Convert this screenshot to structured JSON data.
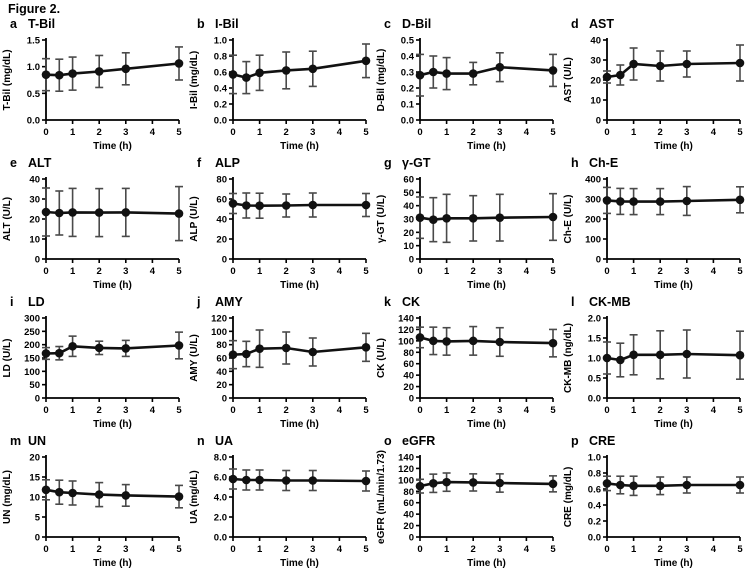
{
  "figure": {
    "title": "Figure 2."
  },
  "chart_data": {
    "type": "line",
    "figure_title": "Figure 2.",
    "xlabel": "Time (h)",
    "x_values": [
      0,
      0.5,
      1,
      2,
      3,
      5
    ],
    "xticks": [
      "0",
      "1",
      "2",
      "3",
      "4",
      "5"
    ],
    "xlim": [
      0,
      5
    ],
    "marker": "filled-circle",
    "error_bars": true,
    "line_color": "#111111",
    "error_bar_color": "#4a4a4a",
    "panels": [
      {
        "letter": "a",
        "title": "T-Bil",
        "ylabel": "T-Bil (mg/dL)",
        "ylim": [
          0,
          1.5
        ],
        "yticks": [
          "0.0",
          "0.5",
          "1.0",
          "1.5"
        ],
        "values": [
          0.85,
          0.84,
          0.87,
          0.91,
          0.96,
          1.06
        ],
        "errors": [
          0.3,
          0.3,
          0.31,
          0.3,
          0.3,
          0.31
        ]
      },
      {
        "letter": "b",
        "title": "I-Bil",
        "ylabel": "I-Bil (mg/dL)",
        "ylim": [
          0,
          1.0
        ],
        "yticks": [
          "0.0",
          "0.2",
          "0.4",
          "0.6",
          "0.8",
          "1.0"
        ],
        "values": [
          0.57,
          0.53,
          0.59,
          0.62,
          0.64,
          0.74
        ],
        "errors": [
          0.24,
          0.2,
          0.22,
          0.23,
          0.22,
          0.21
        ]
      },
      {
        "letter": "c",
        "title": "D-Bil",
        "ylabel": "D-Bil (mg/dL)",
        "ylim": [
          0,
          0.5
        ],
        "yticks": [
          "0.0",
          "0.1",
          "0.2",
          "0.3",
          "0.4",
          "0.5"
        ],
        "values": [
          0.28,
          0.3,
          0.29,
          0.29,
          0.33,
          0.31
        ],
        "errors": [
          0.13,
          0.1,
          0.1,
          0.07,
          0.09,
          0.1
        ]
      },
      {
        "letter": "d",
        "title": "AST",
        "ylabel": "AST (U/L)",
        "ylim": [
          0,
          40
        ],
        "yticks": [
          "0",
          "10",
          "20",
          "30",
          "40"
        ],
        "values": [
          21.5,
          22.5,
          28,
          27,
          28,
          28.5
        ],
        "errors": [
          3,
          5,
          8,
          7.5,
          6.5,
          9
        ]
      },
      {
        "letter": "e",
        "title": "ALT",
        "ylabel": "ALT (U/L)",
        "ylim": [
          0,
          40
        ],
        "yticks": [
          "0",
          "10",
          "20",
          "30",
          "40"
        ],
        "values": [
          23.5,
          23,
          23.3,
          23.2,
          23.3,
          22.7
        ],
        "errors": [
          12,
          11,
          12,
          12,
          12,
          13.5
        ]
      },
      {
        "letter": "f",
        "title": "ALP",
        "ylabel": "ALP (U/L)",
        "ylim": [
          0,
          80
        ],
        "yticks": [
          "0",
          "20",
          "40",
          "60",
          "80"
        ],
        "values": [
          55.5,
          53.5,
          53.3,
          53.5,
          54,
          54
        ],
        "errors": [
          10,
          12.5,
          12.5,
          11.5,
          12,
          11.5
        ]
      },
      {
        "letter": "g",
        "title": "γ-GT",
        "ylabel": "γ-GT (U/L)",
        "ylim": [
          0,
          60
        ],
        "yticks": [
          "0",
          "10",
          "20",
          "30",
          "40",
          "50",
          "60"
        ],
        "values": [
          31,
          29.5,
          30.5,
          30.5,
          31,
          31.5
        ],
        "errors": [
          15.5,
          16.5,
          18,
          17,
          17.5,
          17.5
        ]
      },
      {
        "letter": "h",
        "title": "Ch-E",
        "ylabel": "Ch-E (U/L)",
        "ylim": [
          0,
          400
        ],
        "yticks": [
          "0",
          "100",
          "200",
          "300",
          "400"
        ],
        "values": [
          293,
          288,
          287,
          287,
          290,
          296
        ],
        "errors": [
          65,
          65,
          65,
          65,
          72,
          65
        ]
      },
      {
        "letter": "i",
        "title": "LD",
        "ylabel": "LD (U/L)",
        "ylim": [
          0,
          300
        ],
        "yticks": [
          "0",
          "50",
          "100",
          "150",
          "200",
          "250",
          "300"
        ],
        "values": [
          167,
          168,
          194,
          188,
          186,
          197
        ],
        "errors": [
          22,
          25,
          38,
          25,
          30,
          50
        ]
      },
      {
        "letter": "j",
        "title": "AMY",
        "ylabel": "AMY (U/L)",
        "ylim": [
          0,
          120
        ],
        "yticks": [
          "0",
          "20",
          "40",
          "60",
          "80",
          "100",
          "120"
        ],
        "values": [
          65,
          66,
          74,
          75,
          69,
          76
        ],
        "errors": [
          21,
          19,
          28,
          24,
          21,
          21
        ]
      },
      {
        "letter": "k",
        "title": "CK",
        "ylabel": "CK (U/L)",
        "ylim": [
          0,
          140
        ],
        "yticks": [
          "0",
          "20",
          "40",
          "60",
          "80",
          "100",
          "120",
          "140"
        ],
        "values": [
          106,
          100,
          99,
          100,
          98,
          96
        ],
        "errors": [
          18,
          24,
          24,
          25,
          25,
          24
        ]
      },
      {
        "letter": "l",
        "title": "CK-MB",
        "ylabel": "CK-MB (ng/dL)",
        "ylim": [
          0,
          2.0
        ],
        "yticks": [
          "0.0",
          "0.5",
          "1.0",
          "1.5",
          "2.0"
        ],
        "values": [
          1.0,
          0.95,
          1.08,
          1.08,
          1.1,
          1.07
        ],
        "errors": [
          0.4,
          0.42,
          0.5,
          0.6,
          0.6,
          0.6
        ]
      },
      {
        "letter": "m",
        "title": "UN",
        "ylabel": "UN (mg/dL)",
        "ylim": [
          0,
          20
        ],
        "yticks": [
          "0",
          "5",
          "10",
          "15",
          "20"
        ],
        "values": [
          11.8,
          11.2,
          11.0,
          10.6,
          10.4,
          10.1
        ],
        "errors": [
          2.5,
          3,
          3,
          3,
          2.7,
          2.8
        ]
      },
      {
        "letter": "n",
        "title": "UA",
        "ylabel": "UA (mg/dL)",
        "ylim": [
          0,
          8.0
        ],
        "yticks": [
          "0.0",
          "2.0",
          "4.0",
          "6.0",
          "8.0"
        ],
        "values": [
          5.8,
          5.7,
          5.7,
          5.65,
          5.65,
          5.6
        ],
        "errors": [
          1.0,
          1.0,
          1.0,
          1.0,
          1.0,
          1.0
        ]
      },
      {
        "letter": "o",
        "title": "eGFR",
        "ylabel": "eGFR (mL/min/1.73)",
        "ylim": [
          0,
          140
        ],
        "yticks": [
          "0",
          "20",
          "40",
          "60",
          "80",
          "100",
          "120",
          "140"
        ],
        "values": [
          89,
          94,
          96,
          95.5,
          94.5,
          93
        ],
        "errors": [
          12,
          16,
          16,
          15,
          16,
          14
        ]
      },
      {
        "letter": "p",
        "title": "CRE",
        "ylabel": "CRE (mg/dL)",
        "ylim": [
          0,
          1.0
        ],
        "yticks": [
          "0.0",
          "0.2",
          "0.4",
          "0.6",
          "0.8",
          "1.0"
        ],
        "values": [
          0.67,
          0.65,
          0.64,
          0.64,
          0.65,
          0.65
        ],
        "errors": [
          0.09,
          0.11,
          0.12,
          0.11,
          0.1,
          0.1
        ]
      }
    ]
  }
}
